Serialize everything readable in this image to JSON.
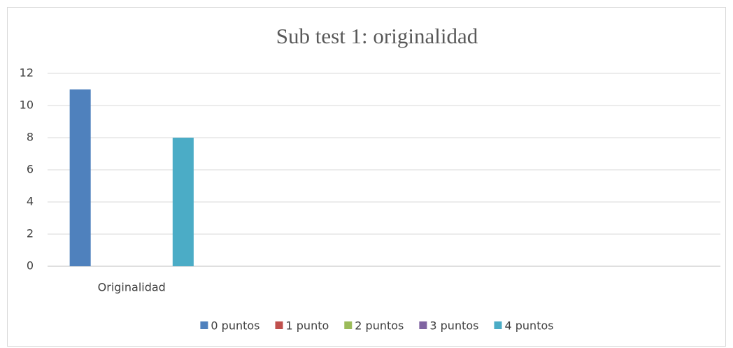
{
  "chart_data": {
    "type": "bar",
    "title": "Sub test 1: originalidad",
    "categories": [
      "Originalidad",
      null,
      null,
      null
    ],
    "series": [
      {
        "name": "0 puntos",
        "color": "#4f81bd",
        "values": [
          11,
          null,
          null,
          null
        ]
      },
      {
        "name": "1 punto",
        "color": "#c0504d",
        "values": [
          0,
          null,
          null,
          null
        ]
      },
      {
        "name": "2 puntos",
        "color": "#9bbb59",
        "values": [
          0,
          null,
          null,
          null
        ]
      },
      {
        "name": "3 puntos",
        "color": "#8064a2",
        "values": [
          0,
          null,
          null,
          null
        ]
      },
      {
        "name": "4 puntos",
        "color": "#4bacc6",
        "values": [
          8,
          null,
          null,
          null
        ]
      }
    ],
    "ylim": [
      0,
      12
    ],
    "yticks": [
      0,
      2,
      4,
      6,
      8,
      10,
      12
    ],
    "grid": true,
    "legend": "bottom"
  }
}
